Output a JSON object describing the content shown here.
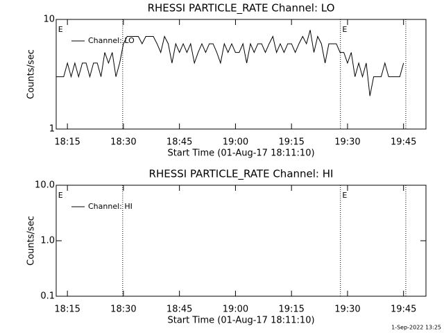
{
  "chart_data": [
    {
      "type": "line",
      "title": "RHESSI PARTICLE_RATE Channel: LO",
      "ylabel": "Counts/sec",
      "xlabel": "Start Time (01-Aug-17 18:11:10)",
      "log_scale": true,
      "ylim": [
        1,
        10
      ],
      "yticks": [
        1,
        10
      ],
      "xlim": [
        1092,
        1191
      ],
      "xticks": [
        {
          "value": 1095,
          "label": "18:15"
        },
        {
          "value": 1110,
          "label": "18:30"
        },
        {
          "value": 1125,
          "label": "18:45"
        },
        {
          "value": 1140,
          "label": "19:00"
        },
        {
          "value": 1155,
          "label": "19:15"
        },
        {
          "value": 1170,
          "label": "19:30"
        },
        {
          "value": 1185,
          "label": "19:45"
        }
      ],
      "vlines": [
        1109.8,
        1168.1,
        1185.6
      ],
      "annotations": [
        {
          "text": "E",
          "x": 1092.5
        },
        {
          "text": "E",
          "x": 1168.6
        }
      ],
      "legend": "upper left",
      "x": [
        1092,
        1093,
        1094,
        1095,
        1096,
        1097,
        1098,
        1099,
        1100,
        1101,
        1102,
        1103,
        1104,
        1105,
        1106,
        1107,
        1108,
        1109,
        1110,
        1111,
        1112,
        1113,
        1114,
        1115,
        1116,
        1117,
        1118,
        1119,
        1120,
        1121,
        1122,
        1123,
        1124,
        1125,
        1126,
        1127,
        1128,
        1129,
        1130,
        1131,
        1132,
        1133,
        1134,
        1135,
        1136,
        1137,
        1138,
        1139,
        1140,
        1141,
        1142,
        1143,
        1144,
        1145,
        1146,
        1147,
        1148,
        1149,
        1150,
        1151,
        1152,
        1153,
        1154,
        1155,
        1156,
        1157,
        1158,
        1159,
        1160,
        1161,
        1162,
        1163,
        1164,
        1165,
        1166,
        1167,
        1168,
        1169,
        1170,
        1171,
        1172,
        1173,
        1174,
        1175,
        1176,
        1177,
        1178,
        1179,
        1180,
        1181,
        1182,
        1183,
        1184,
        1185
      ],
      "series": [
        {
          "name": "Channel: LO",
          "color": "#000000",
          "values": [
            3,
            3,
            3,
            4,
            3,
            4,
            3,
            4,
            4,
            3,
            4,
            4,
            3,
            5,
            4,
            5,
            3,
            4,
            6,
            7,
            7,
            7,
            7,
            6,
            7,
            7,
            7,
            6,
            5,
            7,
            6,
            4,
            6,
            5,
            6,
            5,
            6,
            4,
            5,
            6,
            5,
            6,
            6,
            5,
            4,
            6,
            5,
            6,
            5,
            5,
            6,
            4,
            6,
            5,
            6,
            6,
            5,
            6,
            7,
            5,
            6,
            5,
            6,
            6,
            5,
            6,
            7,
            6,
            8,
            5,
            7,
            6,
            4,
            6,
            6,
            6,
            5,
            5,
            4,
            5,
            3,
            4,
            3,
            4,
            2,
            3,
            3,
            3,
            4,
            3,
            3,
            3,
            3,
            4
          ]
        }
      ]
    },
    {
      "type": "line",
      "title": "RHESSI PARTICLE_RATE Channel: HI",
      "ylabel": "Counts/sec",
      "xlabel": "Start Time (01-Aug-17 18:11:10)",
      "log_scale": true,
      "ylim": [
        0.1,
        10
      ],
      "yticks": [
        0.1,
        {
          "value": 1,
          "label": "1.0"
        },
        {
          "value": 10,
          "label": "10.0"
        }
      ],
      "xlim": [
        1092,
        1191
      ],
      "xticks": [
        {
          "value": 1095,
          "label": "18:15"
        },
        {
          "value": 1110,
          "label": "18:30"
        },
        {
          "value": 1125,
          "label": "18:45"
        },
        {
          "value": 1140,
          "label": "19:00"
        },
        {
          "value": 1155,
          "label": "19:15"
        },
        {
          "value": 1170,
          "label": "19:30"
        },
        {
          "value": 1185,
          "label": "19:45"
        }
      ],
      "vlines": [
        1109.8,
        1168.1,
        1185.6
      ],
      "annotations": [
        {
          "text": "E",
          "x": 1092.5
        },
        {
          "text": "E",
          "x": 1168.6
        }
      ],
      "legend": "upper left",
      "x": [],
      "series": [
        {
          "name": "Channel: HI",
          "color": "#000000",
          "values": []
        }
      ]
    }
  ],
  "footer": "1-Sep-2022 13:25"
}
